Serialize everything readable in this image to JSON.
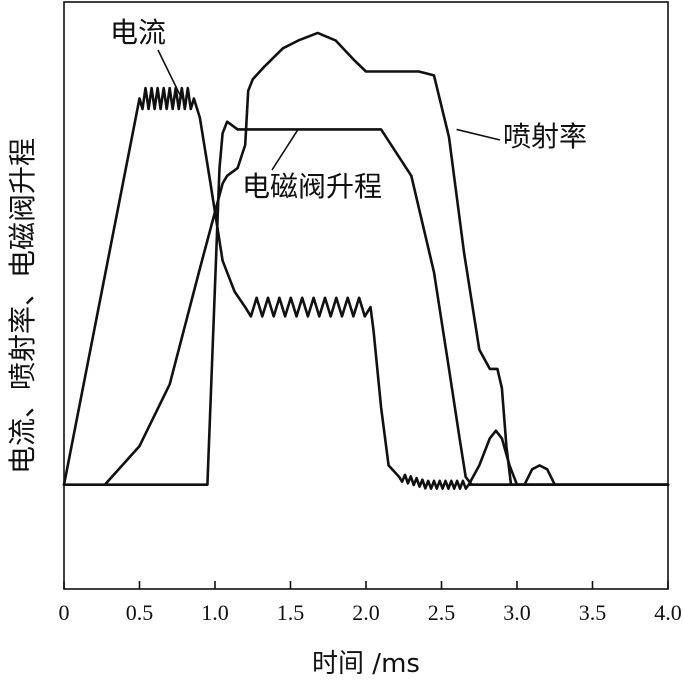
{
  "chart_data": {
    "type": "line",
    "title": "",
    "xlabel": "时间 /ms",
    "ylabel": "电流、喷射率、电磁阀升程",
    "xlim": [
      0,
      4.0
    ],
    "x_ticks": [
      0,
      0.5,
      1.0,
      1.5,
      2.0,
      2.5,
      3.0,
      3.5,
      4.0
    ],
    "x_tick_labels": [
      "0",
      "0.5",
      "1.0",
      "1.5",
      "2.0",
      "2.5",
      "3.0",
      "3.5",
      "4.0"
    ],
    "ylim": [
      -0.27,
      1.25
    ],
    "y_ticks_shown": false,
    "grid": false,
    "legend": "inline annotations",
    "series": [
      {
        "name": "电流",
        "points": [
          [
            0,
            0
          ],
          [
            0.5,
            1.0
          ],
          [
            0.86,
            1.0
          ],
          [
            0.9,
            0.95
          ],
          [
            0.97,
            0.78
          ],
          [
            1.05,
            0.58
          ],
          [
            1.13,
            0.5
          ],
          [
            1.2,
            0.46
          ],
          [
            2.03,
            0.46
          ],
          [
            2.05,
            0.4
          ],
          [
            2.1,
            0.2
          ],
          [
            2.15,
            0.05
          ],
          [
            2.22,
            0.02
          ],
          [
            2.4,
            0.0
          ],
          [
            4.0,
            0.0
          ]
        ],
        "ripples": [
          {
            "x_start": 0.5,
            "x_end": 0.86,
            "amplitude": 0.027,
            "cycles": 9
          },
          {
            "x_start": 1.2,
            "x_end": 2.03,
            "amplitude": 0.024,
            "cycles": 11
          },
          {
            "x_start": 2.22,
            "x_end": 2.68,
            "amplitude": 0.01,
            "cycles": 12
          }
        ]
      },
      {
        "name": "电磁阀升程",
        "points": [
          [
            0,
            0
          ],
          [
            0.95,
            0
          ],
          [
            1.03,
            0.82
          ],
          [
            1.05,
            0.91
          ],
          [
            1.08,
            0.94
          ],
          [
            1.15,
            0.92
          ],
          [
            1.3,
            0.92
          ],
          [
            2.1,
            0.92
          ],
          [
            2.3,
            0.8
          ],
          [
            2.45,
            0.55
          ],
          [
            2.55,
            0.3
          ],
          [
            2.62,
            0.12
          ],
          [
            2.66,
            0.02
          ],
          [
            2.7,
            0.0
          ],
          [
            4.0,
            0.0
          ]
        ]
      },
      {
        "name": "喷射率",
        "points": [
          [
            0.27,
            0
          ],
          [
            0.5,
            0.1
          ],
          [
            0.7,
            0.26
          ],
          [
            0.9,
            0.56
          ],
          [
            1.05,
            0.78
          ],
          [
            1.08,
            0.8
          ],
          [
            1.15,
            0.82
          ],
          [
            1.2,
            0.88
          ],
          [
            1.22,
            1.02
          ],
          [
            1.25,
            1.05
          ],
          [
            1.32,
            1.08
          ],
          [
            1.45,
            1.13
          ],
          [
            1.55,
            1.15
          ],
          [
            1.68,
            1.17
          ],
          [
            1.8,
            1.15
          ],
          [
            1.92,
            1.1
          ],
          [
            2.0,
            1.07
          ],
          [
            2.1,
            1.07
          ],
          [
            2.25,
            1.07
          ],
          [
            2.35,
            1.07
          ],
          [
            2.45,
            1.06
          ],
          [
            2.55,
            0.9
          ],
          [
            2.65,
            0.6
          ],
          [
            2.75,
            0.35
          ],
          [
            2.82,
            0.3
          ],
          [
            2.87,
            0.3
          ],
          [
            2.9,
            0.25
          ],
          [
            2.93,
            0.1
          ],
          [
            2.96,
            0.0
          ],
          [
            3.05,
            0.0
          ],
          [
            4.0,
            0.0
          ]
        ]
      },
      {
        "name": "",
        "points": [
          [
            2.68,
            0
          ],
          [
            2.75,
            0.05
          ],
          [
            2.82,
            0.12
          ],
          [
            2.86,
            0.14
          ],
          [
            2.9,
            0.12
          ],
          [
            2.95,
            0.05
          ],
          [
            3.0,
            0.0
          ],
          [
            3.05,
            0.0
          ],
          [
            3.1,
            0.04
          ],
          [
            3.15,
            0.05
          ],
          [
            3.2,
            0.04
          ],
          [
            3.25,
            0.0
          ],
          [
            4.0,
            0.0
          ]
        ]
      }
    ],
    "annotations": [
      {
        "text": "电流",
        "target": [
          0.78,
          1.0
        ]
      },
      {
        "text": "电磁阀升程",
        "target": [
          1.55,
          0.92
        ]
      },
      {
        "text": "喷射率",
        "target": [
          2.6,
          0.92
        ]
      }
    ]
  }
}
